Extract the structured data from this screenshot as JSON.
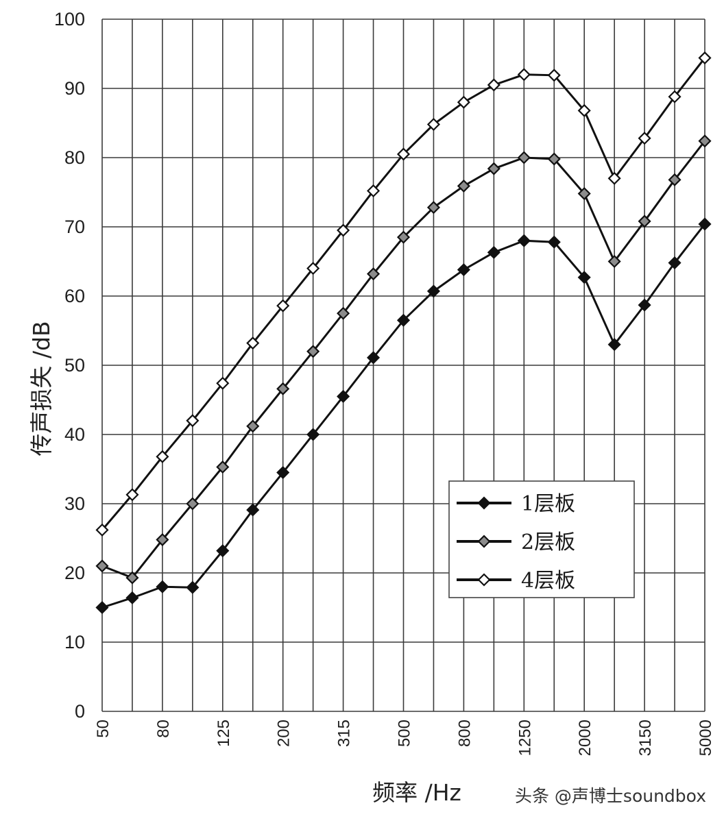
{
  "chart_data": {
    "type": "line",
    "title": "",
    "xlabel": "频率 /Hz",
    "ylabel": "传声损失 /dB",
    "ylim": [
      0,
      100
    ],
    "yticks": [
      0,
      10,
      20,
      30,
      40,
      50,
      60,
      70,
      80,
      90,
      100
    ],
    "grid": true,
    "legend_position": "lower-right",
    "x": [
      50,
      63,
      80,
      100,
      125,
      160,
      200,
      250,
      315,
      400,
      500,
      630,
      800,
      1000,
      1250,
      1600,
      2000,
      2500,
      3150,
      4000,
      5000
    ],
    "xtick_labels": [
      "50",
      "",
      "80",
      "",
      "125",
      "",
      "200",
      "",
      "315",
      "",
      "500",
      "",
      "800",
      "",
      "1250",
      "",
      "2000",
      "",
      "3150",
      "",
      "5000"
    ],
    "series": [
      {
        "name": "1层板",
        "marker": "black-diamond",
        "fill": "#111111",
        "values": [
          15,
          16.4,
          18,
          17.9,
          23.2,
          29.1,
          34.5,
          40,
          45.5,
          51.1,
          56.5,
          60.7,
          63.8,
          66.3,
          68,
          67.8,
          62.7,
          53,
          58.7,
          64.8,
          70.4
        ]
      },
      {
        "name": "2层板",
        "marker": "gray-diamond",
        "fill": "#8c8c8c",
        "values": [
          21,
          19.3,
          24.8,
          30,
          35.3,
          41.2,
          46.6,
          52,
          57.5,
          63.2,
          68.5,
          72.8,
          75.9,
          78.4,
          80,
          79.8,
          74.8,
          65,
          70.8,
          76.8,
          82.4
        ]
      },
      {
        "name": "4层板",
        "marker": "white-diamond",
        "fill": "#ffffff",
        "values": [
          26.2,
          31.3,
          36.8,
          42,
          47.4,
          53.2,
          58.6,
          64,
          69.5,
          75.2,
          80.5,
          84.8,
          88,
          90.5,
          92,
          91.9,
          86.8,
          77,
          82.8,
          88.8,
          94.4
        ]
      }
    ]
  },
  "watermark": "头条 @声博士soundbox"
}
